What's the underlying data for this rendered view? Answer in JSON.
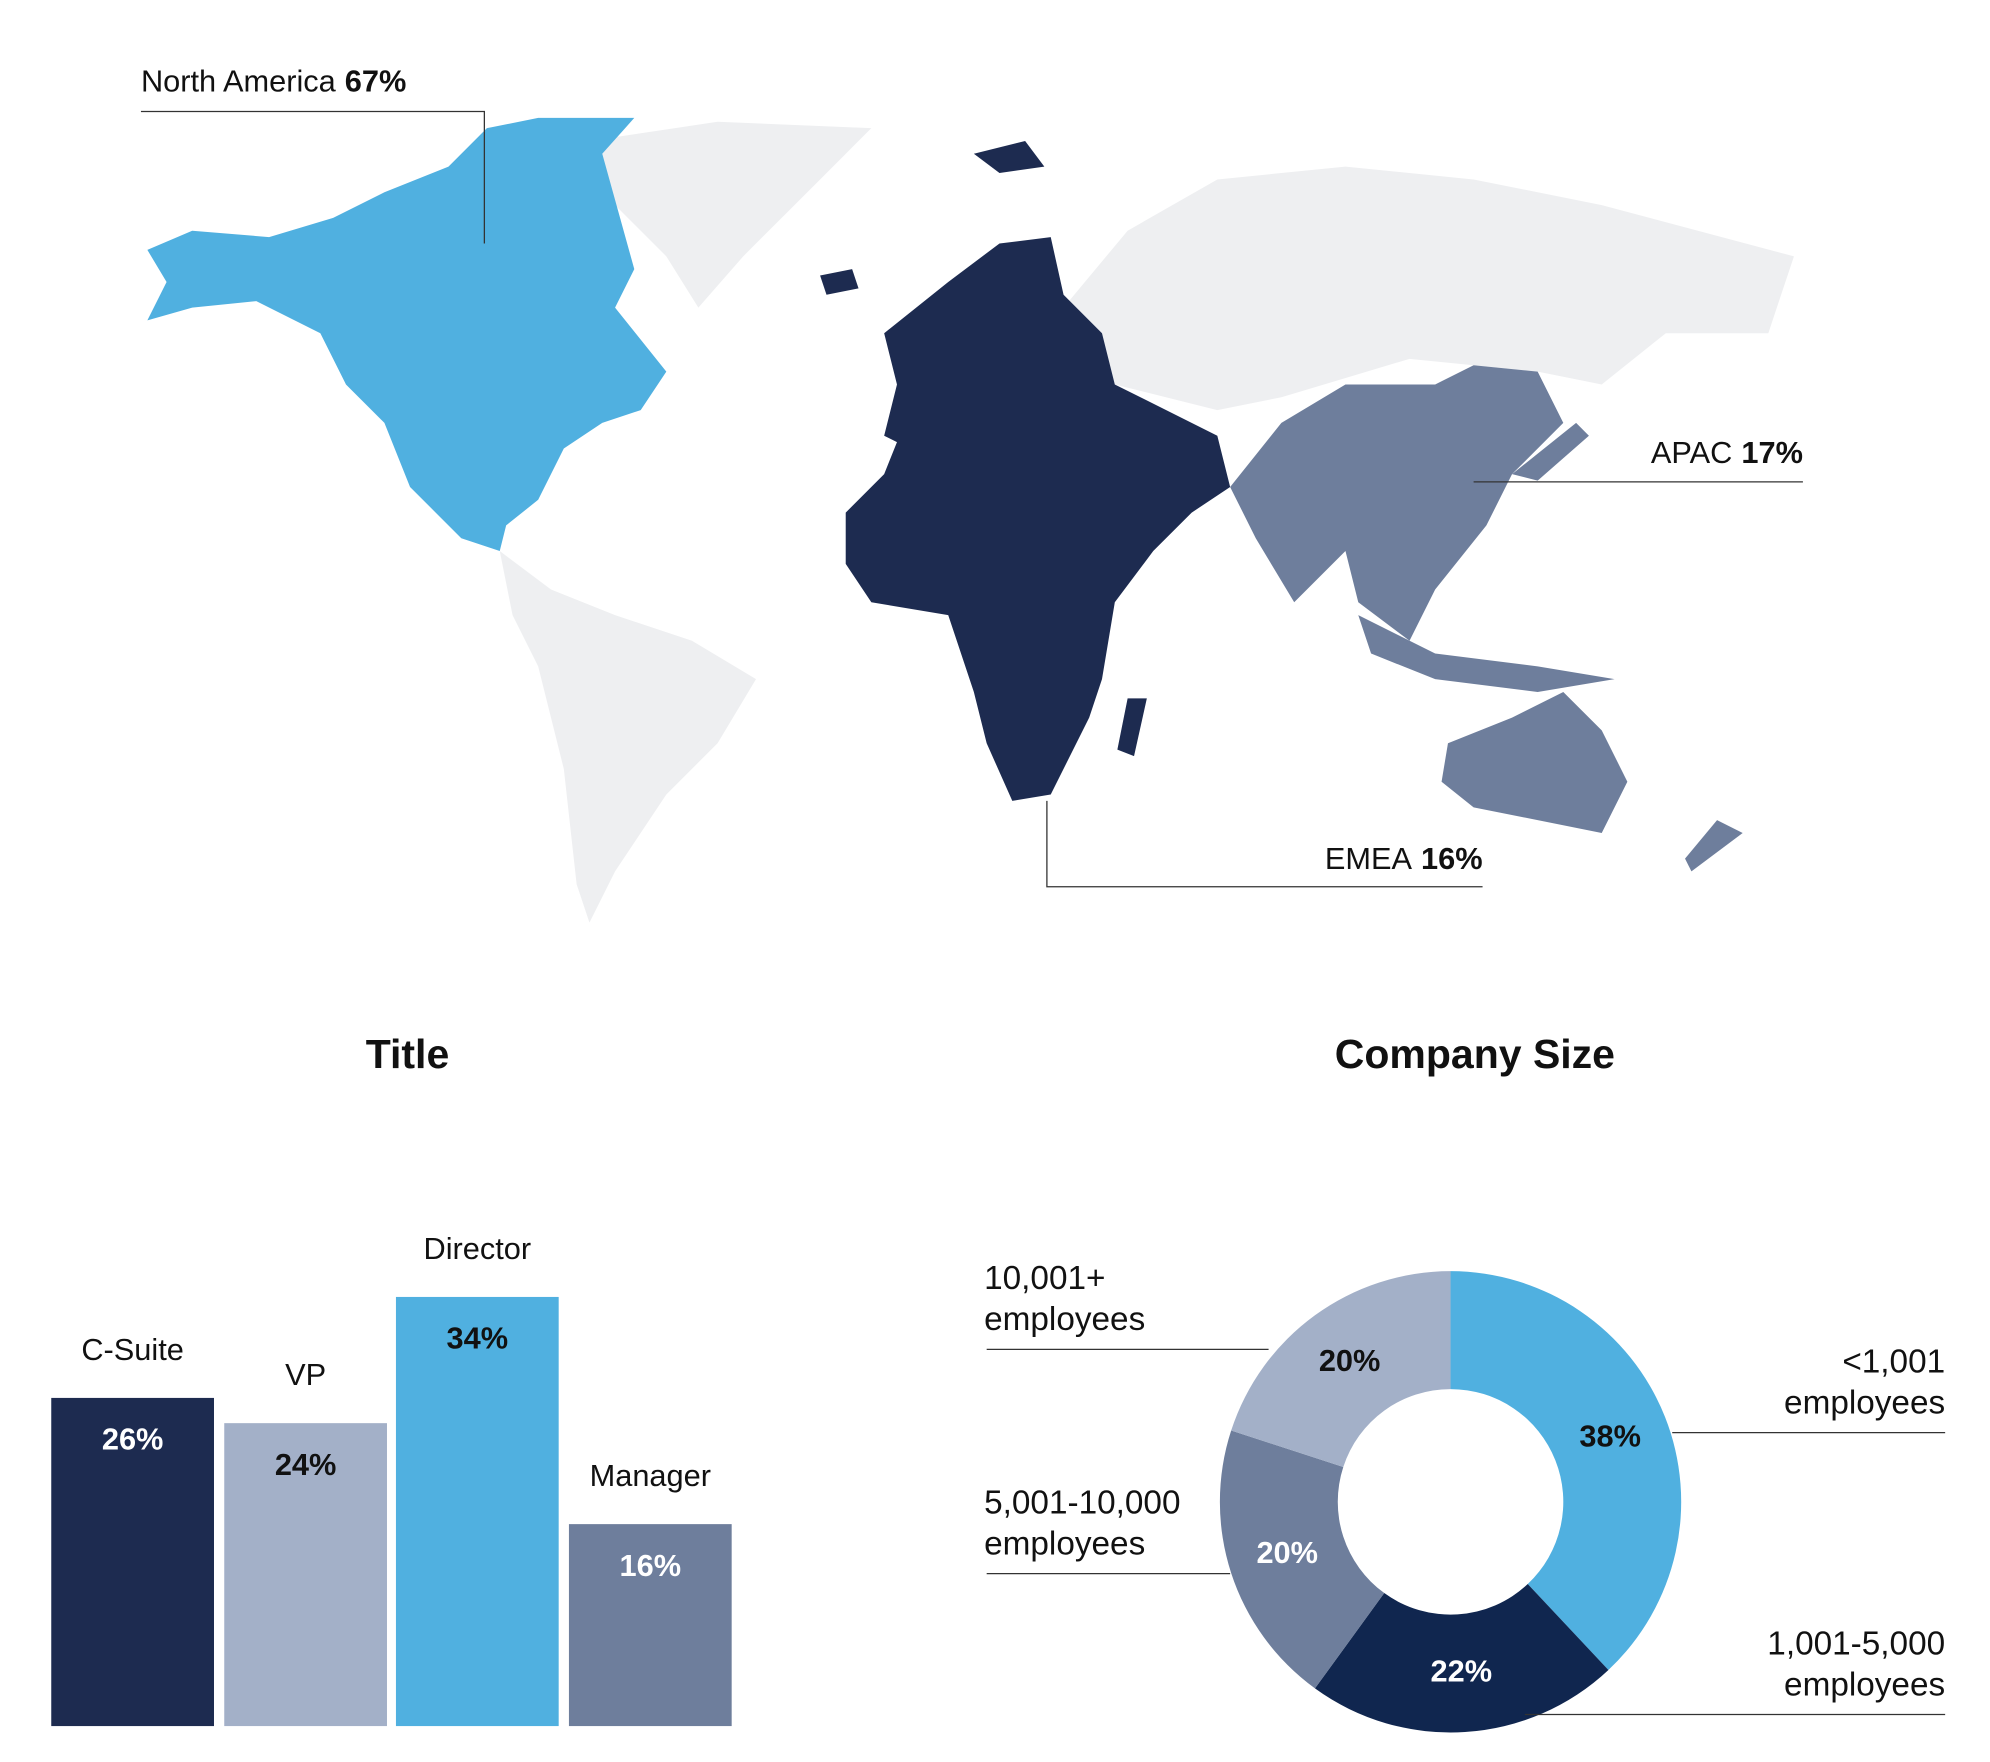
{
  "chart_data": [
    {
      "type": "map",
      "regions": [
        "North America",
        "APAC",
        "EMEA"
      ],
      "values": [
        67,
        17,
        16
      ],
      "value_labels": [
        "67%",
        "17%",
        "16%"
      ],
      "colors": [
        "#50b0e0",
        "#6e7e9c",
        "#1d2b50"
      ]
    },
    {
      "type": "bar",
      "title": "Title",
      "categories": [
        "C-Suite",
        "VP",
        "Director",
        "Manager"
      ],
      "values": [
        26,
        24,
        34,
        16
      ],
      "value_labels": [
        "26%",
        "24%",
        "34%",
        "16%"
      ],
      "colors": [
        "#1d2b50",
        "#a3b0c8",
        "#50b0e0",
        "#6e7e9c"
      ]
    },
    {
      "type": "pie",
      "donut": true,
      "title": "Company Size",
      "categories": [
        "<1,001 employees",
        "1,001-5,000 employees",
        "5,001-10,000 employees",
        "10,001+ employees"
      ],
      "values": [
        38,
        22,
        20,
        20
      ],
      "value_labels": [
        "38%",
        "22%",
        "20%",
        "20%"
      ],
      "colors": [
        "#50b0e0",
        "#10264f",
        "#6e7e9c",
        "#a3b0c8"
      ]
    }
  ]
}
